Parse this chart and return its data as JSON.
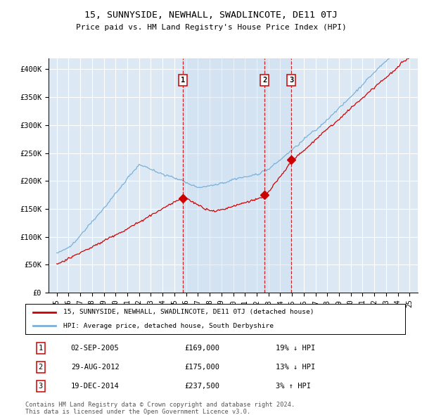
{
  "title": "15, SUNNYSIDE, NEWHALL, SWADLINCOTE, DE11 0TJ",
  "subtitle": "Price paid vs. HM Land Registry's House Price Index (HPI)",
  "ylim": [
    0,
    420000
  ],
  "yticks": [
    0,
    50000,
    100000,
    150000,
    200000,
    250000,
    300000,
    350000,
    400000
  ],
  "ytick_labels": [
    "£0",
    "£50K",
    "£100K",
    "£150K",
    "£200K",
    "£250K",
    "£300K",
    "£350K",
    "£400K"
  ],
  "bg_color": "#dce9f5",
  "grid_color": "#ffffff",
  "red_color": "#cc0000",
  "blue_color": "#7ab0d8",
  "shade_color": "#c5d8ef",
  "sale_years": [
    2005.75,
    2012.67,
    2014.96
  ],
  "sale_prices": [
    169000,
    175000,
    237500
  ],
  "sale_labels": [
    "1",
    "2",
    "3"
  ],
  "legend_line1": "15, SUNNYSIDE, NEWHALL, SWADLINCOTE, DE11 0TJ (detached house)",
  "legend_line2": "HPI: Average price, detached house, South Derbyshire",
  "table_data": [
    [
      "1",
      "02-SEP-2005",
      "£169,000",
      "19% ↓ HPI"
    ],
    [
      "2",
      "29-AUG-2012",
      "£175,000",
      "13% ↓ HPI"
    ],
    [
      "3",
      "19-DEC-2014",
      "£237,500",
      "3% ↑ HPI"
    ]
  ],
  "footer": "Contains HM Land Registry data © Crown copyright and database right 2024.\nThis data is licensed under the Open Government Licence v3.0.",
  "start_year": 1995,
  "end_year": 2025
}
